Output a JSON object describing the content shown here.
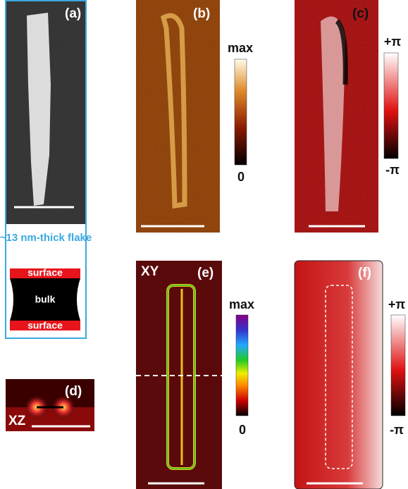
{
  "panels": [
    {
      "label": "(a)"
    },
    {
      "label": "(b)",
      "colorbar": {
        "top": "max",
        "bottom": "0"
      }
    },
    {
      "label": "(c)",
      "colorbar": {
        "top": "+π",
        "bottom": "-π"
      }
    },
    {
      "label": "(d)",
      "plane": "XZ"
    },
    {
      "label": "(e)",
      "plane": "XY",
      "colorbar": {
        "top": "max",
        "bottom": "0"
      }
    },
    {
      "label": "(f)",
      "colorbar": {
        "top": "+π",
        "bottom": "-π"
      }
    }
  ],
  "schematic": {
    "caption": "~13 nm-thick flake",
    "layers": [
      "surface",
      "bulk",
      "surface"
    ]
  }
}
